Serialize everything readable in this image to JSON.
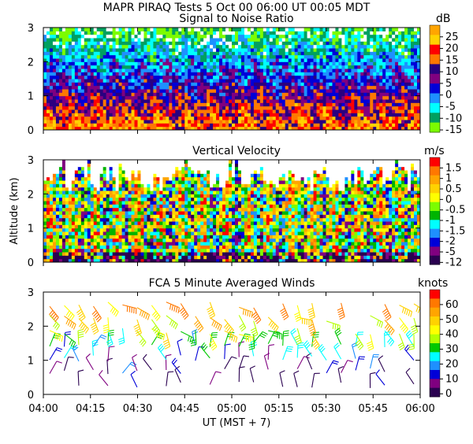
{
  "header": {
    "title": "MAPR PIRAQ Tests  5 Oct 00  06:00 UT  00:05  MDT"
  },
  "chart_data": [
    {
      "type": "heatmap",
      "title": "Signal to Noise Ratio",
      "ylabel": "",
      "ylim": [
        0,
        3
      ],
      "yticks": [
        "0",
        "1",
        "2",
        "3"
      ],
      "colorbar": {
        "unit": "dB",
        "labels": [
          "25",
          "20",
          "15",
          "10",
          "5",
          "0",
          "-5",
          "-10",
          "-15"
        ],
        "colors": [
          "#ffa500",
          "#ffd200",
          "#ff0000",
          "#ff7800",
          "#2a0080",
          "#800080",
          "#0000d8",
          "#1e90ff",
          "#00ffff",
          "#00a060",
          "#7cfc00"
        ]
      }
    },
    {
      "type": "heatmap",
      "title": "Vertical Velocity",
      "ylabel": "Altitude (km)",
      "ylim": [
        0,
        3
      ],
      "yticks": [
        "0",
        "1",
        "2",
        "3"
      ],
      "colorbar": {
        "unit": "m/s",
        "labels": [
          "1.5",
          "1",
          "0.5",
          "0",
          "-0.5",
          "-1",
          "-1.5",
          "-2",
          "-5",
          "-12"
        ],
        "colors": [
          "#ff0000",
          "#ff7800",
          "#ffa500",
          "#ffd200",
          "#ffff00",
          "#7cfc00",
          "#00b400",
          "#00ffff",
          "#1e90ff",
          "#0000d8",
          "#800080",
          "#2a0050"
        ]
      }
    },
    {
      "type": "scatter",
      "title": "FCA 5 Minute Averaged Winds",
      "ylabel": "",
      "ylim": [
        0,
        3
      ],
      "yticks": [
        "0",
        "1",
        "2",
        "3"
      ],
      "colorbar": {
        "unit": "knots",
        "labels": [
          "60",
          "50",
          "40",
          "30",
          "20",
          "10",
          "0"
        ],
        "colors": [
          "#ff0000",
          "#ff7800",
          "#ffa500",
          "#ffd200",
          "#ffff00",
          "#b4ff00",
          "#00c800",
          "#00ffff",
          "#1e90ff",
          "#0000d8",
          "#800080",
          "#2a0050"
        ]
      },
      "xticks": [
        "04:00",
        "04:15",
        "04:30",
        "04:45",
        "05:00",
        "05:15",
        "05:30",
        "05:45",
        "06:00"
      ],
      "xlabel": "UT  (MST + 7)"
    }
  ]
}
